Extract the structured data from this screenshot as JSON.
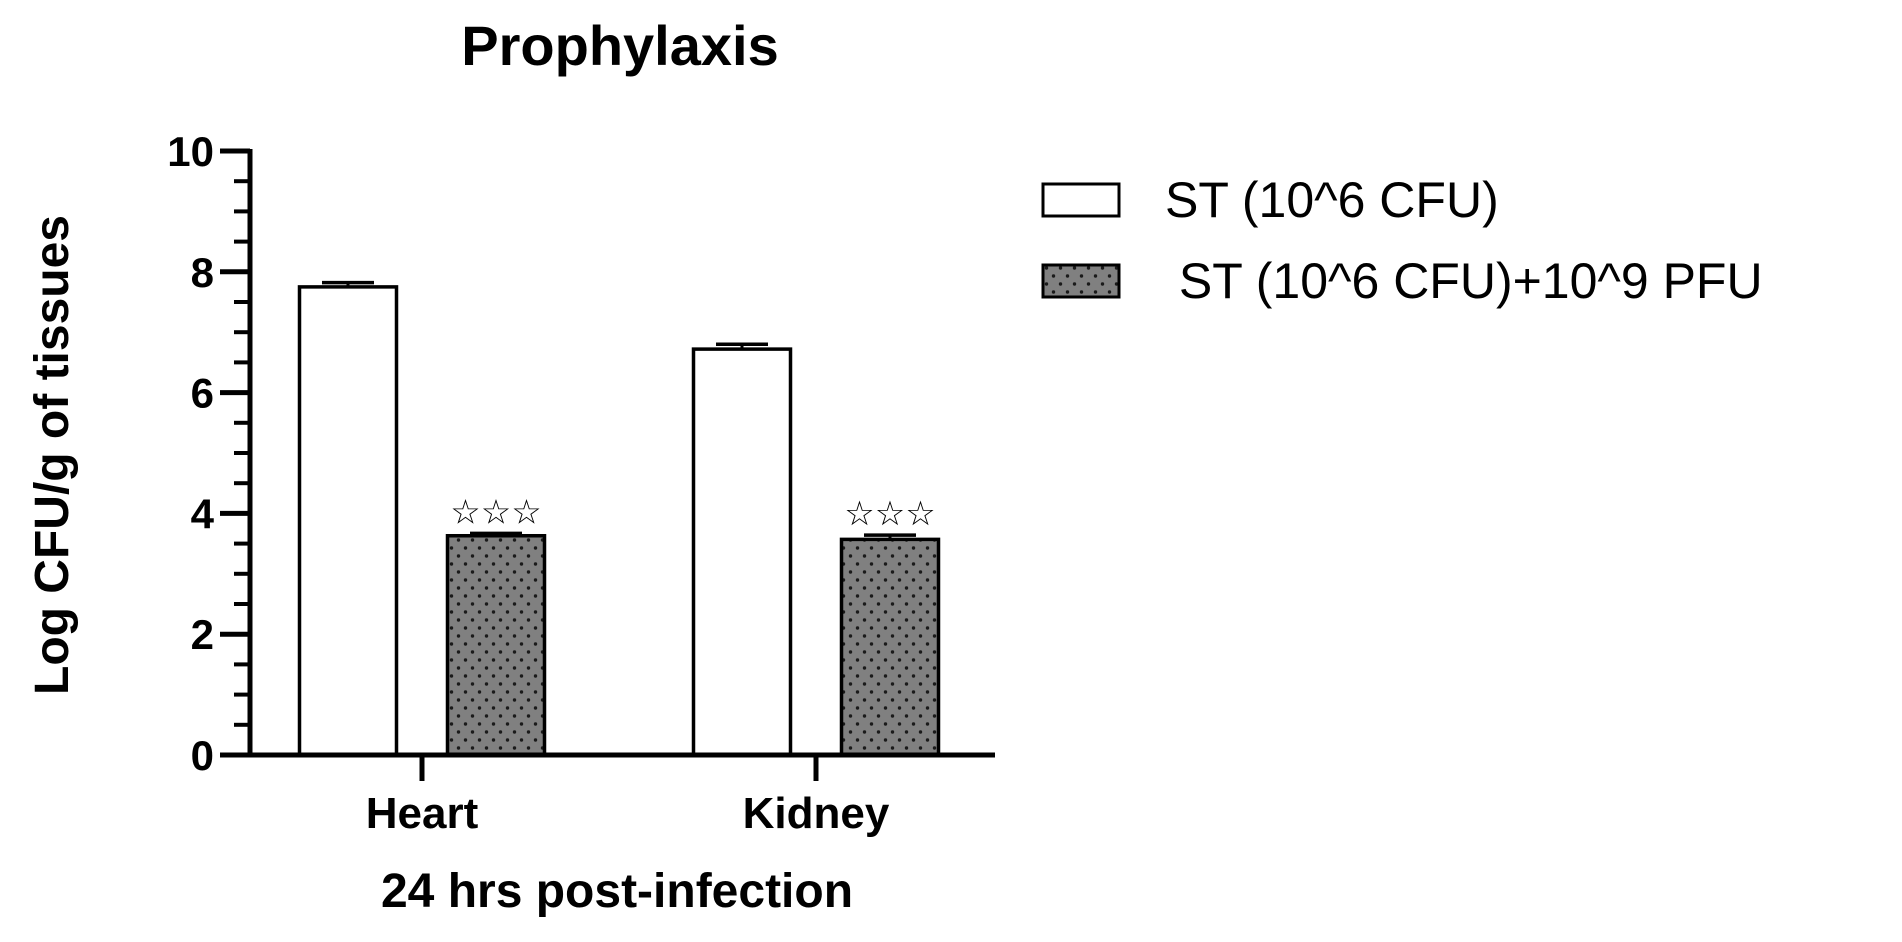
{
  "chart_data": {
    "type": "bar",
    "title": "Prophylaxis",
    "xlabel": "24 hrs post-infection",
    "ylabel": "Log CFU/g of tissues",
    "ylim": [
      0,
      10
    ],
    "yticks": [
      "0",
      "2",
      "4",
      "6",
      "8",
      "10"
    ],
    "categories": [
      "Heart",
      "Kidney"
    ],
    "legend_position": "top-right",
    "series": [
      {
        "name": "ST (10^6 CFU)",
        "values": [
          7.75,
          6.72
        ],
        "errors": [
          0.07,
          0.08
        ],
        "fill": "#ffffff",
        "pattern": "none",
        "annotations": [
          "",
          ""
        ]
      },
      {
        "name": " ST (10^6 CFU)+10^9 PFU",
        "values": [
          3.63,
          3.57
        ],
        "errors": [
          0.04,
          0.07
        ],
        "fill": "#808080",
        "pattern": "dots",
        "annotations": [
          "☆☆☆",
          "☆☆☆"
        ]
      }
    ]
  }
}
